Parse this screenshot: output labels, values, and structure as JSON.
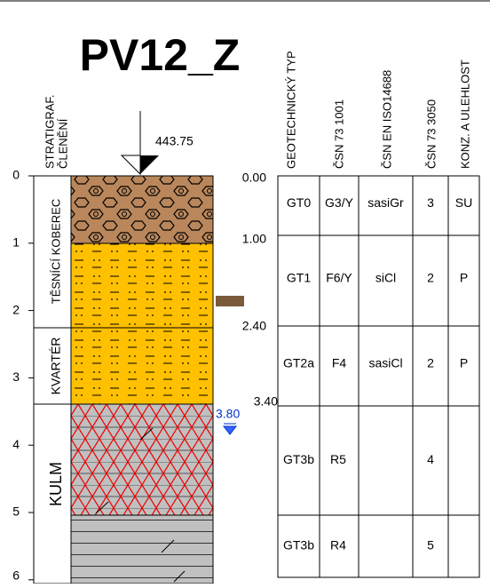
{
  "title": "PV12_Z",
  "elevation": "443.75",
  "headers": {
    "strat": [
      "STRATIGRAF.",
      "ČLENĚNÍ"
    ],
    "geotype": "GEOTECHNICKÝ TYP",
    "csn731001": "ČSN 73 1001",
    "iso": "ČSN EN ISO14688",
    "csn733050": "ČSN 73 3050",
    "konz": "KONZ. A ULEHLOST"
  },
  "depth_ticks": [
    "0",
    "1",
    "2",
    "3",
    "4",
    "5",
    "6"
  ],
  "strat_units": [
    "TĚSNÍCÍ KOBEREC",
    "KVARTÉR",
    "KULM"
  ],
  "layer_depths": [
    "0.00",
    "1.00",
    "2.40",
    "3.40"
  ],
  "water_level": "3.80",
  "table": {
    "rows": [
      {
        "gt": "GT0",
        "csn731001": "G3/Y",
        "iso": "sasiGr",
        "csn733050": "3",
        "konz": "SU"
      },
      {
        "gt": "GT1",
        "csn731001": "F6/Y",
        "iso": "siCl",
        "csn733050": "2",
        "konz": "P"
      },
      {
        "gt": "GT2a",
        "csn731001": "F4",
        "iso": "sasiCl",
        "csn733050": "2",
        "konz": "P"
      },
      {
        "gt": "GT3b",
        "csn731001": "R5",
        "csn733050": "4"
      },
      {
        "gt": "GT3b",
        "csn731001": "R4",
        "csn733050": "5"
      }
    ]
  }
}
